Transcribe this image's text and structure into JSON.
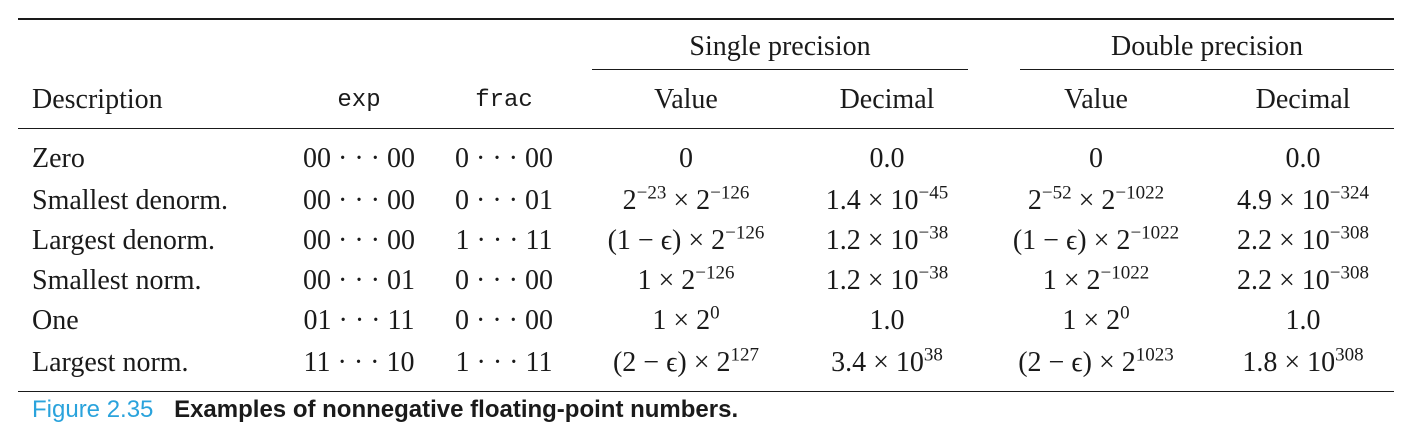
{
  "table": {
    "groups": {
      "single": "Single precision",
      "double": "Double precision"
    },
    "headers": {
      "description": "Description",
      "exp": "exp",
      "frac": "frac",
      "single_value": "Value",
      "single_decimal": "Decimal",
      "double_value": "Value",
      "double_decimal": "Decimal"
    },
    "rows": [
      {
        "description": "Zero",
        "exp": "00 · · · 00",
        "frac": "0 · · · 00",
        "single_value": {
          "base": "0",
          "sup": "",
          "rest": "",
          "sup2": ""
        },
        "single_decimal": {
          "base": "0.0",
          "sup": ""
        },
        "double_value": {
          "base": "0",
          "sup": "",
          "rest": "",
          "sup2": ""
        },
        "double_decimal": {
          "base": "0.0",
          "sup": ""
        }
      },
      {
        "description": "Smallest denorm.",
        "exp": "00 · · · 00",
        "frac": "0 · · · 01",
        "single_value": {
          "base": "2",
          "sup": "−23",
          "rest": " × 2",
          "sup2": "−126"
        },
        "single_decimal": {
          "base": "1.4 × 10",
          "sup": "−45"
        },
        "double_value": {
          "base": "2",
          "sup": "−52",
          "rest": " × 2",
          "sup2": "−1022"
        },
        "double_decimal": {
          "base": "4.9 × 10",
          "sup": "−324"
        }
      },
      {
        "description": "Largest denorm.",
        "exp": "00 · · · 00",
        "frac": "1 · · · 11",
        "single_value": {
          "base": "(1 − ϵ) × 2",
          "sup": "−126",
          "rest": "",
          "sup2": ""
        },
        "single_decimal": {
          "base": "1.2 × 10",
          "sup": "−38"
        },
        "double_value": {
          "base": "(1 − ϵ) × 2",
          "sup": "−1022",
          "rest": "",
          "sup2": ""
        },
        "double_decimal": {
          "base": "2.2 × 10",
          "sup": "−308"
        }
      },
      {
        "description": "Smallest norm.",
        "exp": "00 · · · 01",
        "frac": "0 · · · 00",
        "single_value": {
          "base": "1 × 2",
          "sup": "−126",
          "rest": "",
          "sup2": ""
        },
        "single_decimal": {
          "base": "1.2 × 10",
          "sup": "−38"
        },
        "double_value": {
          "base": "1 × 2",
          "sup": "−1022",
          "rest": "",
          "sup2": ""
        },
        "double_decimal": {
          "base": "2.2 × 10",
          "sup": "−308"
        }
      },
      {
        "description": "One",
        "exp": "01 · · · 11",
        "frac": "0 · · · 00",
        "single_value": {
          "base": "1 × 2",
          "sup": "0",
          "rest": "",
          "sup2": ""
        },
        "single_decimal": {
          "base": "1.0",
          "sup": ""
        },
        "double_value": {
          "base": "1 × 2",
          "sup": "0",
          "rest": "",
          "sup2": ""
        },
        "double_decimal": {
          "base": "1.0",
          "sup": ""
        }
      },
      {
        "description": "Largest norm.",
        "exp": "11 · · · 10",
        "frac": "1 · · · 11",
        "single_value": {
          "base": "(2 − ϵ) × 2",
          "sup": "127",
          "rest": "",
          "sup2": ""
        },
        "single_decimal": {
          "base": "3.4 × 10",
          "sup": "38"
        },
        "double_value": {
          "base": "(2 − ϵ) × 2",
          "sup": "1023",
          "rest": "",
          "sup2": ""
        },
        "double_decimal": {
          "base": "1.8 × 10",
          "sup": "308"
        }
      }
    ]
  },
  "caption": {
    "label": "Figure 2.35",
    "text": "Examples of nonnegative floating-point numbers."
  },
  "colors": {
    "caption_label": "#2aa3dc",
    "text": "#1a1a1a"
  }
}
